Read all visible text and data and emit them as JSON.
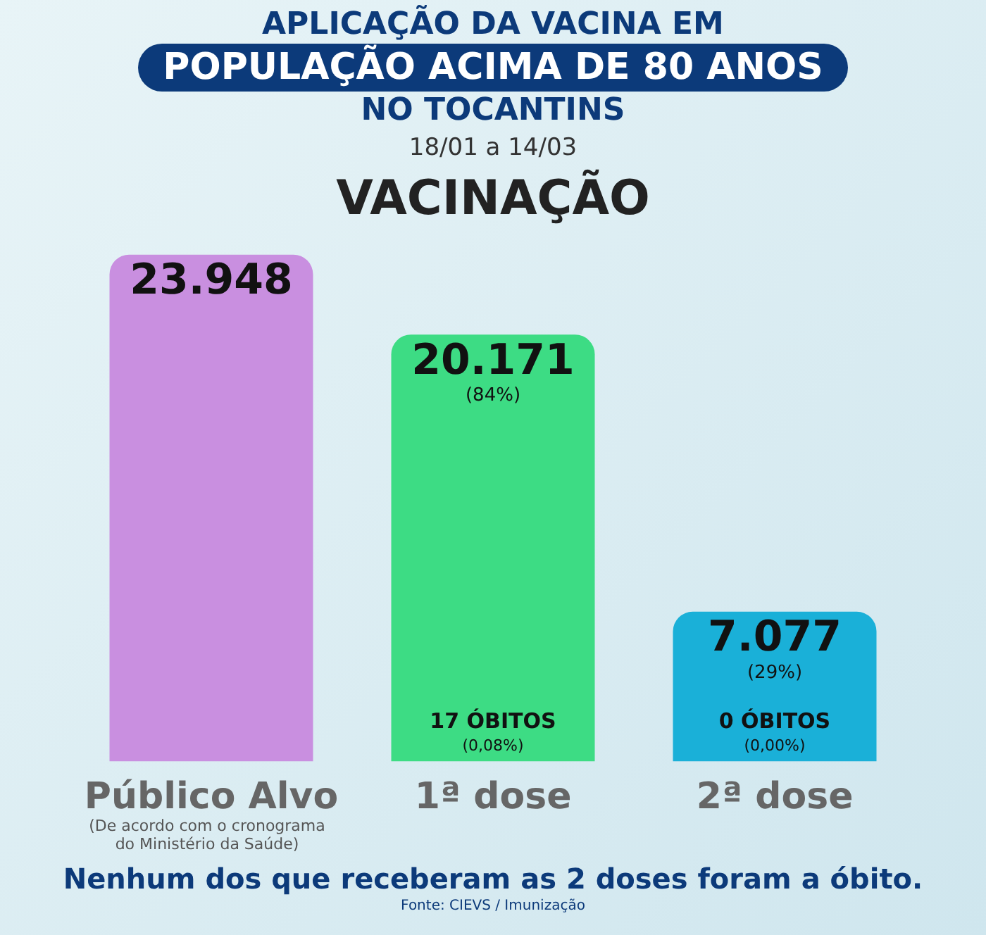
{
  "chart_data": {
    "type": "bar",
    "title": "APLICAÇÃO DA VACINA EM\nPOPULAÇÃO ACIMA DE 80 ANOS\nNO TOCANTINS\n18/01 a 14/03",
    "subtitle": "VACINAÇÃO",
    "categories": [
      "Público Alvo",
      "1ª dose",
      "2ª dose"
    ],
    "values": [
      23948,
      20171,
      7077
    ],
    "value_labels": [
      "23.948",
      "20.171\n(84%)",
      "7.077\n(29%)"
    ],
    "colors": [
      "#c98fe0",
      "#3ddc84",
      "#1ab0d8"
    ],
    "grid": false,
    "legend": false,
    "tick_labels": "x",
    "annotations": [
      {
        "text": "17 ÓBITOS\n(0,08%)",
        "x": "1ª dose",
        "y": 0
      },
      {
        "text": "0 ÓBITOS\n(0,00%)",
        "x": "2ª dose",
        "y": 0
      },
      "(De acordo com o cronograma do Ministério da Saúde)",
      "Nenhum dos que receberam as 2 doses foram a óbito.",
      "Fonte: CIEVS / Imunização"
    ]
  }
}
